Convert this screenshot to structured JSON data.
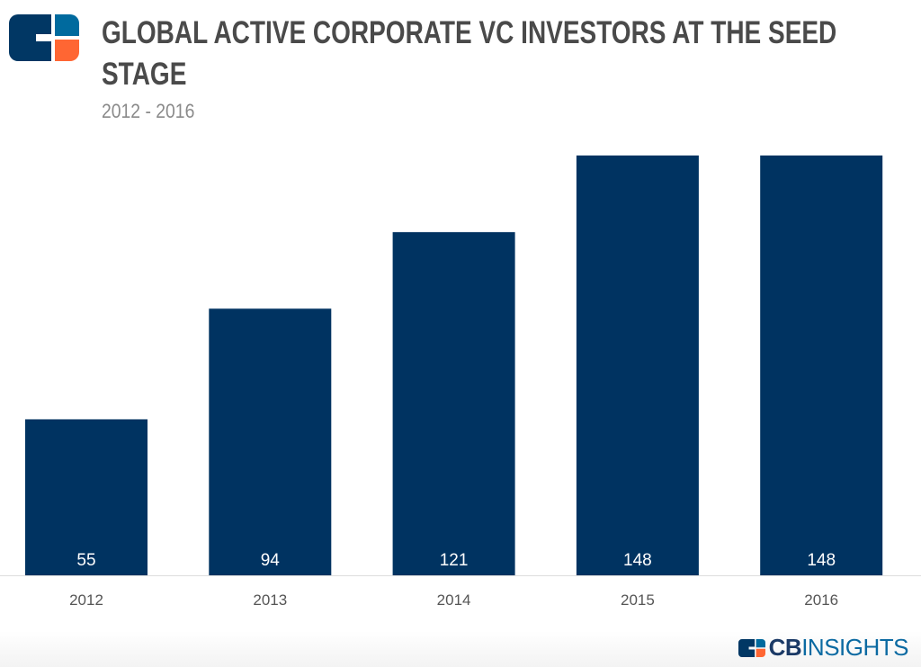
{
  "header": {
    "title_line1": "GLOBAL ACTIVE CORPORATE VC INVESTORS AT THE SEED",
    "title_line2": "STAGE",
    "subtitle": "2012 - 2016"
  },
  "brand": {
    "bold": "CB",
    "light": "INSIGHTS",
    "logo_icon": "cb-insights-logo"
  },
  "colors": {
    "bar": "#003361",
    "logo_navy": "#013764",
    "logo_blue": "#006a9e",
    "logo_orange": "#ff6633",
    "title": "#4a4a4a"
  },
  "chart_data": {
    "type": "bar",
    "title": "GLOBAL ACTIVE CORPORATE VC INVESTORS AT THE SEED STAGE",
    "subtitle": "2012 - 2016",
    "categories": [
      "2012",
      "2013",
      "2014",
      "2015",
      "2016"
    ],
    "values": [
      55,
      94,
      121,
      148,
      148
    ],
    "data_labels": [
      "55",
      "94",
      "121",
      "148",
      "148"
    ],
    "xlabel": "",
    "ylabel": "",
    "ylim": [
      0,
      148
    ],
    "grid": false,
    "legend": "none"
  }
}
